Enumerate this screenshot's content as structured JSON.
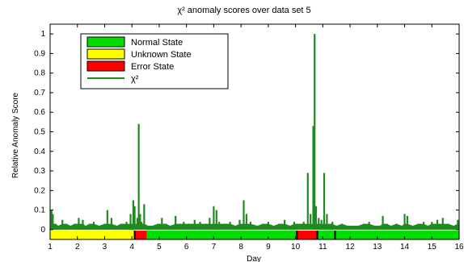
{
  "chart_data": {
    "type": "bar",
    "title": "χ² anomaly scores over data set 5",
    "xlabel": "Day",
    "ylabel": "Relative Anomaly Score",
    "xlim": [
      1,
      16
    ],
    "ylim": [
      -0.05,
      1.05
    ],
    "x_ticks": [
      "1",
      "2",
      "3",
      "4",
      "5",
      "6",
      "7",
      "8",
      "9",
      "10",
      "11",
      "12",
      "13",
      "14",
      "15",
      "16"
    ],
    "y_ticks": [
      "0",
      "0.1",
      "0.2",
      "0.3",
      "0.4",
      "0.5",
      "0.6",
      "0.7",
      "0.8",
      "0.9",
      "1"
    ],
    "grid": false,
    "legend_position": "top-left",
    "legend": [
      {
        "label": "Normal State",
        "kind": "patch",
        "color": "#00dd00"
      },
      {
        "label": "Unknown State",
        "kind": "patch",
        "color": "#ffff00"
      },
      {
        "label": "Error State",
        "kind": "patch",
        "color": "#ff0000"
      },
      {
        "label": "χ²",
        "kind": "line",
        "color": "#1f8a1f"
      }
    ],
    "state_bar": {
      "y_range": [
        -0.05,
        -0.005
      ],
      "segments": [
        {
          "state": "Unknown State",
          "start": 1.0,
          "end": 4.1,
          "color": "#ffff00"
        },
        {
          "state": "Error State",
          "start": 4.1,
          "end": 4.55,
          "color": "#ff0000"
        },
        {
          "state": "Normal State",
          "start": 4.55,
          "end": 10.05,
          "color": "#00dd00"
        },
        {
          "state": "Error State",
          "start": 10.05,
          "end": 10.8,
          "color": "#ff0000"
        },
        {
          "state": "Normal State",
          "start": 10.8,
          "end": 16.0,
          "color": "#00dd00"
        }
      ],
      "markers": [
        4.1,
        10.05,
        10.8,
        11.45
      ]
    },
    "series": [
      {
        "color": "#1f8a1f",
        "x": [
          1.05,
          1.1,
          1.2,
          1.3,
          1.45,
          1.6,
          1.75,
          1.9,
          2.05,
          2.2,
          2.3,
          2.45,
          2.6,
          2.8,
          3.0,
          3.1,
          3.25,
          3.45,
          3.6,
          3.8,
          3.95,
          4.05,
          4.1,
          4.2,
          4.25,
          4.3,
          4.35,
          4.45,
          4.6,
          4.75,
          4.95,
          5.1,
          5.25,
          5.4,
          5.6,
          5.75,
          5.9,
          6.1,
          6.3,
          6.5,
          6.7,
          6.85,
          7.0,
          7.1,
          7.2,
          7.4,
          7.6,
          7.8,
          7.95,
          8.1,
          8.2,
          8.35,
          8.6,
          8.8,
          9.0,
          9.2,
          9.4,
          9.6,
          9.8,
          9.95,
          10.05,
          10.2,
          10.3,
          10.45,
          10.55,
          10.65,
          10.7,
          10.75,
          10.85,
          10.95,
          11.05,
          11.15,
          11.35,
          11.5,
          11.7,
          11.9,
          12.1,
          12.3,
          12.5,
          12.7,
          12.9,
          13.1,
          13.2,
          13.35,
          13.5,
          13.7,
          13.9,
          14.0,
          14.1,
          14.3,
          14.5,
          14.7,
          14.85,
          15.0,
          15.2,
          15.4,
          15.6,
          15.8,
          15.95
        ],
        "y": [
          0.1,
          0.08,
          0.03,
          0.02,
          0.05,
          0.03,
          0.02,
          0.03,
          0.06,
          0.05,
          0.02,
          0.03,
          0.04,
          0.02,
          0.03,
          0.1,
          0.06,
          0.02,
          0.03,
          0.04,
          0.08,
          0.15,
          0.12,
          0.06,
          0.54,
          0.08,
          0.04,
          0.13,
          0.02,
          0.02,
          0.03,
          0.06,
          0.03,
          0.02,
          0.07,
          0.03,
          0.04,
          0.03,
          0.05,
          0.04,
          0.03,
          0.06,
          0.12,
          0.1,
          0.04,
          0.03,
          0.04,
          0.02,
          0.05,
          0.15,
          0.08,
          0.04,
          0.02,
          0.03,
          0.04,
          0.02,
          0.03,
          0.05,
          0.02,
          0.04,
          0.03,
          0.03,
          0.04,
          0.29,
          0.08,
          0.53,
          1.0,
          0.12,
          0.06,
          0.05,
          0.29,
          0.08,
          0.04,
          0.02,
          0.03,
          0.02,
          0.02,
          0.02,
          0.03,
          0.04,
          0.02,
          0.02,
          0.07,
          0.03,
          0.02,
          0.03,
          0.02,
          0.08,
          0.07,
          0.02,
          0.03,
          0.04,
          0.02,
          0.04,
          0.05,
          0.06,
          0.03,
          0.02,
          0.05
        ]
      }
    ]
  }
}
